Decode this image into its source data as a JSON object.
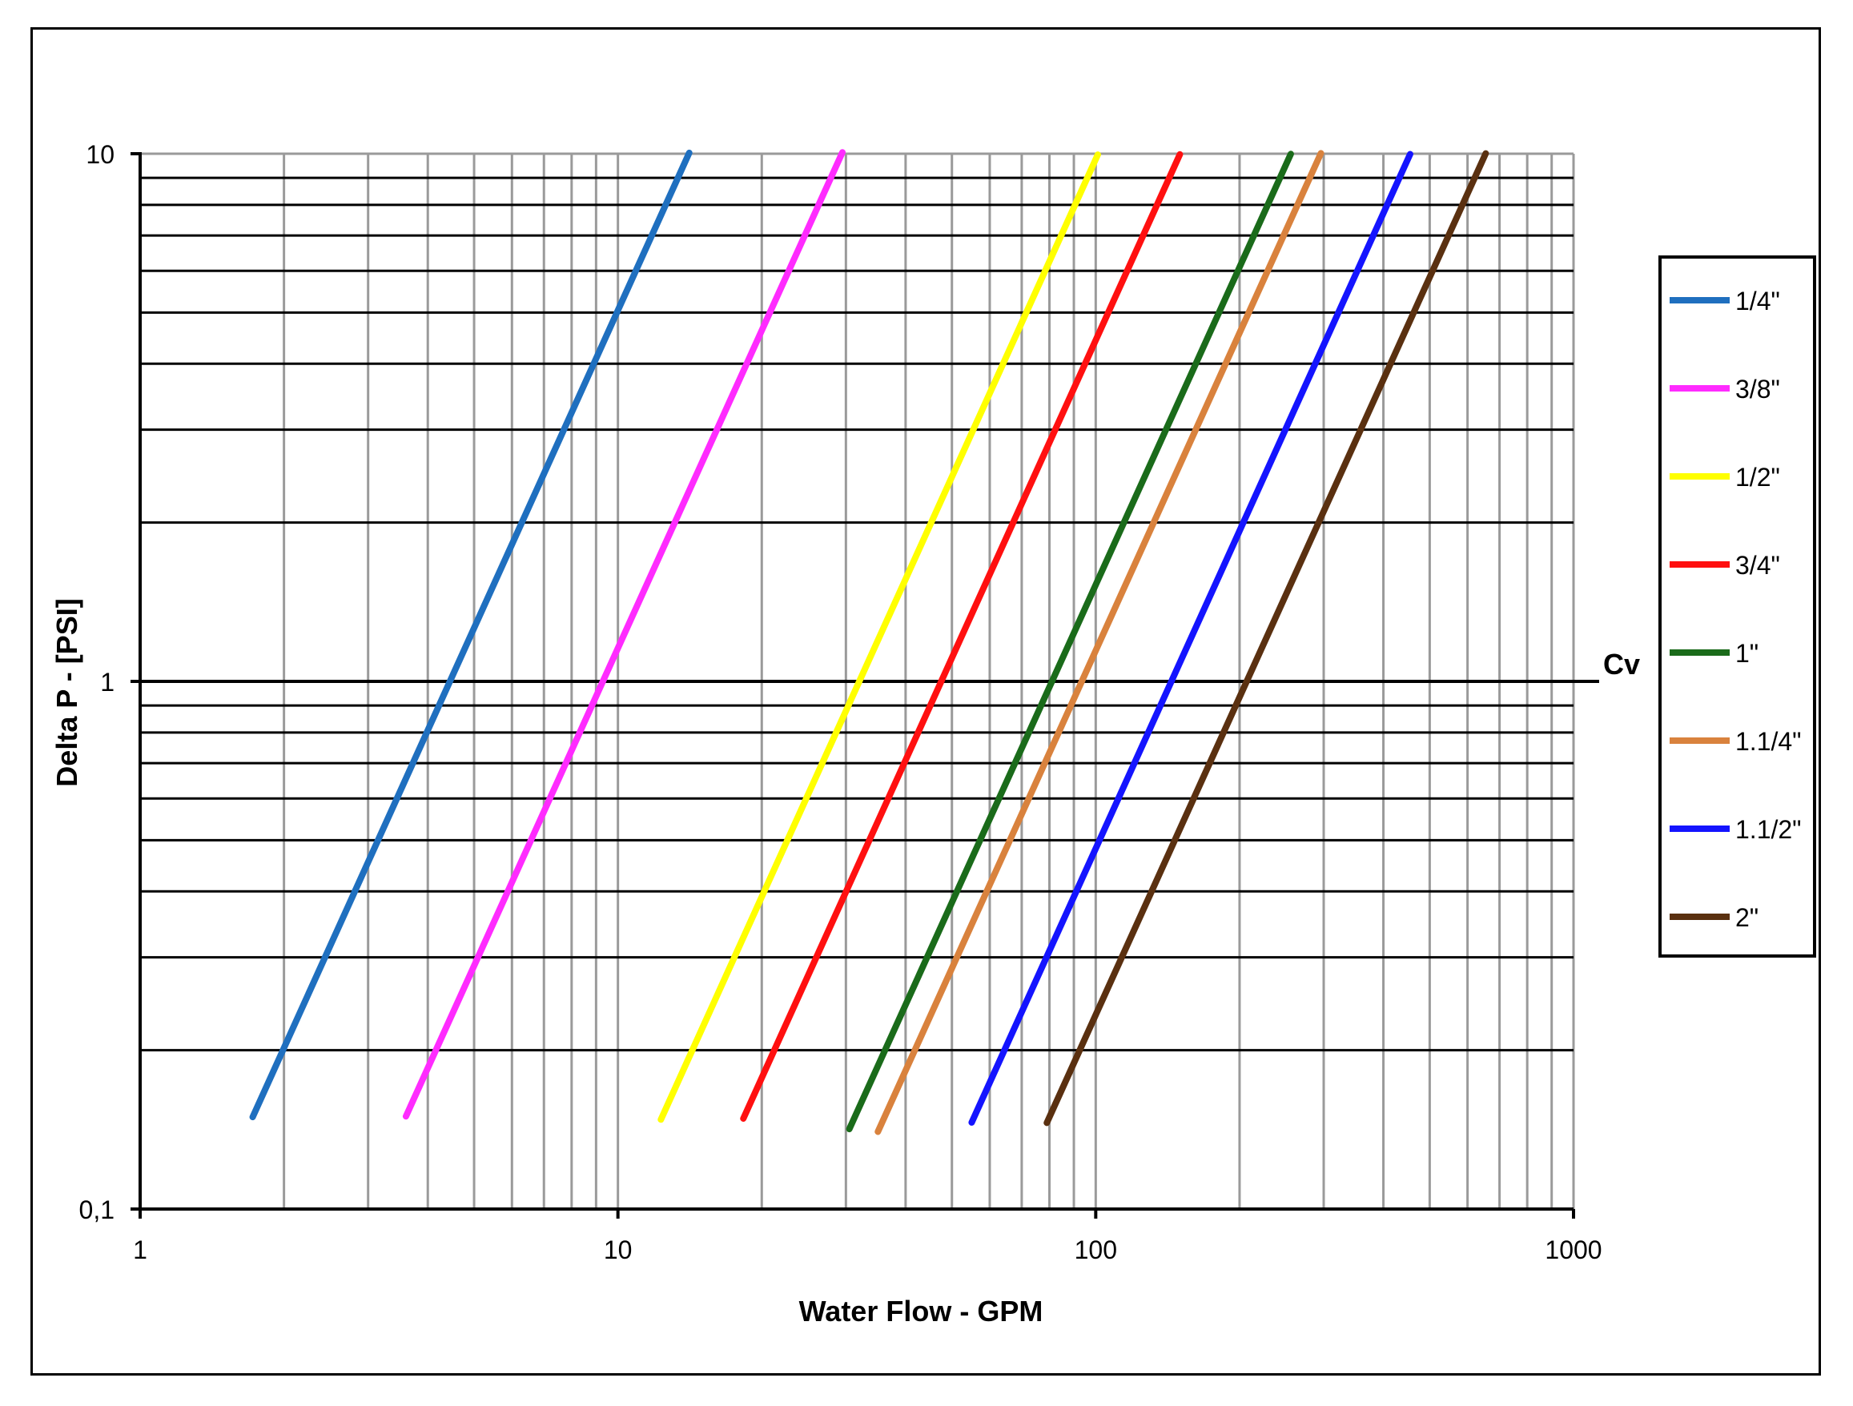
{
  "chart_data": {
    "type": "line",
    "xlabel": "Water Flow - GPM",
    "ylabel": "Delta P - [PSI]",
    "x_scale": "log",
    "y_scale": "log",
    "xlim": [
      1,
      1000
    ],
    "ylim": [
      0.1,
      10
    ],
    "x_ticks": [
      "1",
      "10",
      "100",
      "1000"
    ],
    "y_ticks": [
      "0,1",
      "1",
      "10"
    ],
    "grid": true,
    "legend_position": "right",
    "cv_reference": {
      "label": "Cv",
      "y": 1
    },
    "series": [
      {
        "name": "1/4\"",
        "color": "#1f6fbf",
        "cv": 4.45,
        "x_range": [
          1.72,
          14.1
        ]
      },
      {
        "name": "3/8\"",
        "color": "#ff2bff",
        "cv": 9.3,
        "x_range": [
          3.6,
          29.5
        ]
      },
      {
        "name": "1/2\"",
        "color": "#ffff00",
        "cv": 32.0,
        "x_range": [
          12.3,
          101
        ]
      },
      {
        "name": "3/4\"",
        "color": "#ff1010",
        "cv": 47.5,
        "x_range": [
          18.3,
          150
        ]
      },
      {
        "name": "1\"",
        "color": "#1a6b1a",
        "cv": 81.0,
        "x_range": [
          30.5,
          256
        ]
      },
      {
        "name": "1.1/4\"",
        "color": "#d9823d",
        "cv": 93.5,
        "x_range": [
          35,
          296
        ]
      },
      {
        "name": "1.1/2\"",
        "color": "#1414ff",
        "cv": 144.0,
        "x_range": [
          55,
          455
        ]
      },
      {
        "name": "2\"",
        "color": "#5a3010",
        "cv": 207.0,
        "x_range": [
          79,
          655
        ]
      }
    ],
    "y_start": 0.15,
    "y_end": 10
  }
}
